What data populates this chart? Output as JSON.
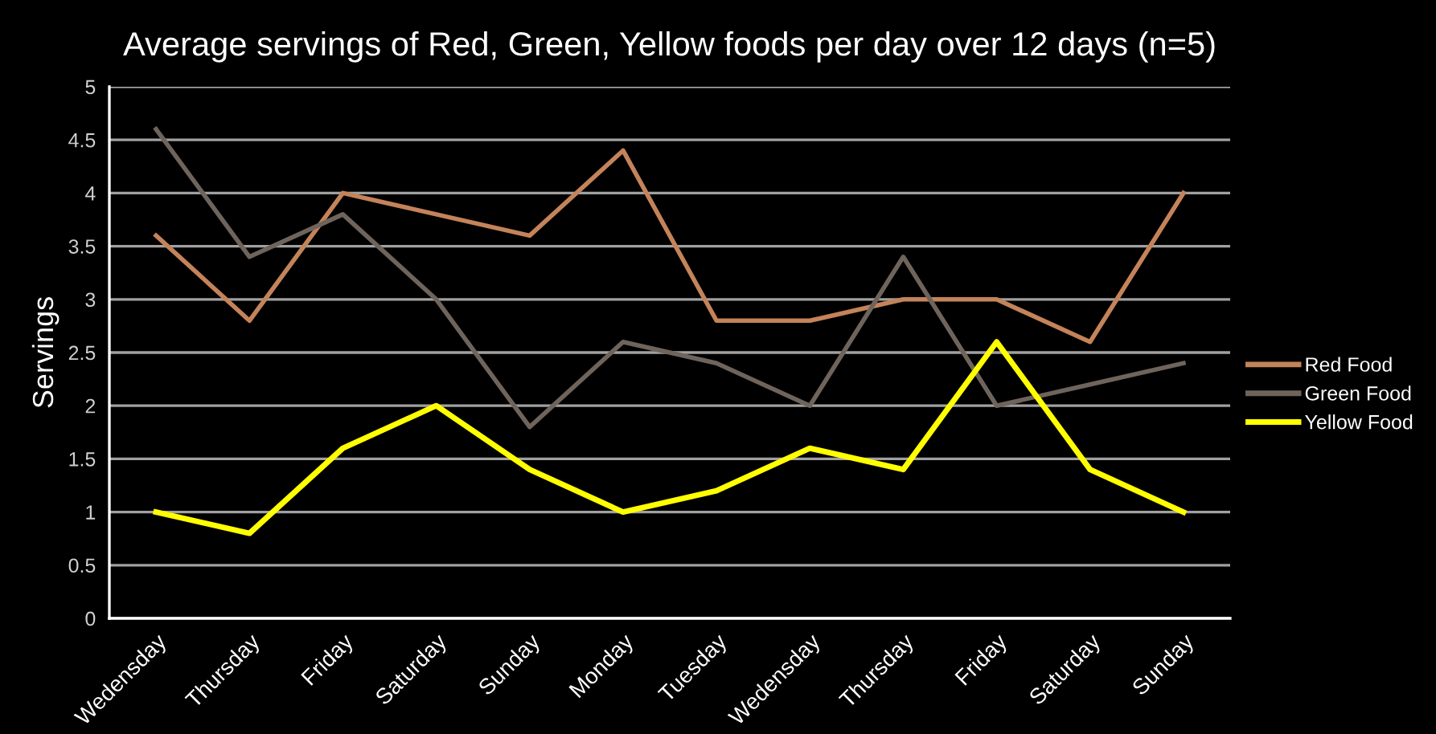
{
  "chart_data": {
    "type": "line",
    "title": "Average servings of Red, Green, Yellow foods per day over 12 days (n=5)",
    "ylabel": "Servings",
    "categories": [
      "Wedensday",
      "Thursday",
      "Friday",
      "Saturday",
      "Sunday",
      "Monday",
      "Tuesday",
      "Wedensday",
      "Thursday",
      "Friday",
      "Saturday",
      "Sunday"
    ],
    "series": [
      {
        "name": "Red Food",
        "color": "#c4835a",
        "values": [
          3.6,
          2.8,
          4.0,
          3.8,
          3.6,
          4.4,
          2.8,
          2.8,
          3.0,
          3.0,
          2.6,
          4.0
        ]
      },
      {
        "name": "Green Food",
        "color": "#6f645c",
        "values": [
          4.6,
          3.4,
          3.8,
          3.0,
          1.8,
          2.6,
          2.4,
          2.0,
          3.4,
          2.0,
          2.2,
          2.4
        ]
      },
      {
        "name": "Yellow Food",
        "color": "#ffff00",
        "values": [
          1.0,
          0.8,
          1.6,
          2.0,
          1.4,
          1.0,
          1.2,
          1.6,
          1.4,
          2.6,
          1.4,
          1.0
        ]
      }
    ],
    "ylim": [
      0,
      5
    ],
    "yticks": [
      0,
      0.5,
      1,
      1.5,
      2,
      2.5,
      3,
      3.5,
      4,
      4.5,
      5
    ],
    "grid": "y",
    "legend": "right",
    "marker": "none",
    "line_style": "solid"
  }
}
